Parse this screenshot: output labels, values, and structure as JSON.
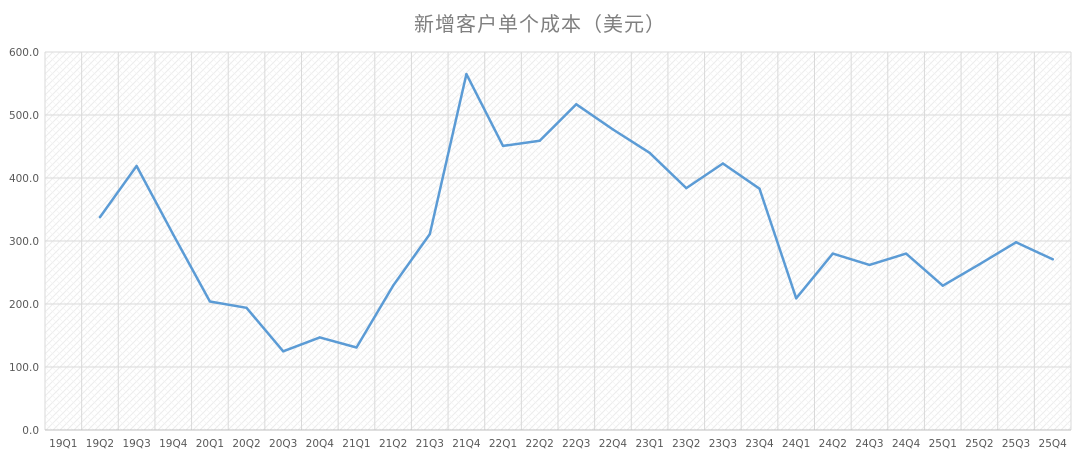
{
  "chart_data": {
    "type": "line",
    "title": "新增客户单个成本（美元）",
    "xlabel": "",
    "ylabel": "",
    "ylim": [
      0,
      600
    ],
    "yticks": [
      "0.0",
      "100.0",
      "200.0",
      "300.0",
      "400.0",
      "500.0",
      "600.0"
    ],
    "grid": true,
    "legend": "none",
    "categories": [
      "19Q1",
      "19Q2",
      "19Q3",
      "19Q4",
      "20Q1",
      "20Q2",
      "20Q3",
      "20Q4",
      "21Q1",
      "21Q2",
      "21Q3",
      "21Q4",
      "22Q1",
      "22Q2",
      "22Q3",
      "22Q4",
      "23Q1",
      "23Q2",
      "23Q3",
      "23Q4",
      "24Q1",
      "24Q2",
      "24Q3",
      "24Q4",
      "25Q1",
      "25Q2",
      "25Q3",
      "25Q4"
    ],
    "series": [
      {
        "color": "#5b9bd5",
        "values": [
          null,
          338,
          419,
          310,
          204,
          194,
          125,
          147,
          131,
          229,
          311,
          565,
          451,
          459,
          517,
          477,
          440,
          384,
          423,
          383,
          209,
          280,
          262,
          280,
          229,
          263,
          298,
          271
        ]
      }
    ]
  },
  "colors": {
    "line": "#5b9bd5",
    "grid": "#d9d9d9",
    "axis": "#bfbfbf",
    "hatch": "#ececec"
  }
}
